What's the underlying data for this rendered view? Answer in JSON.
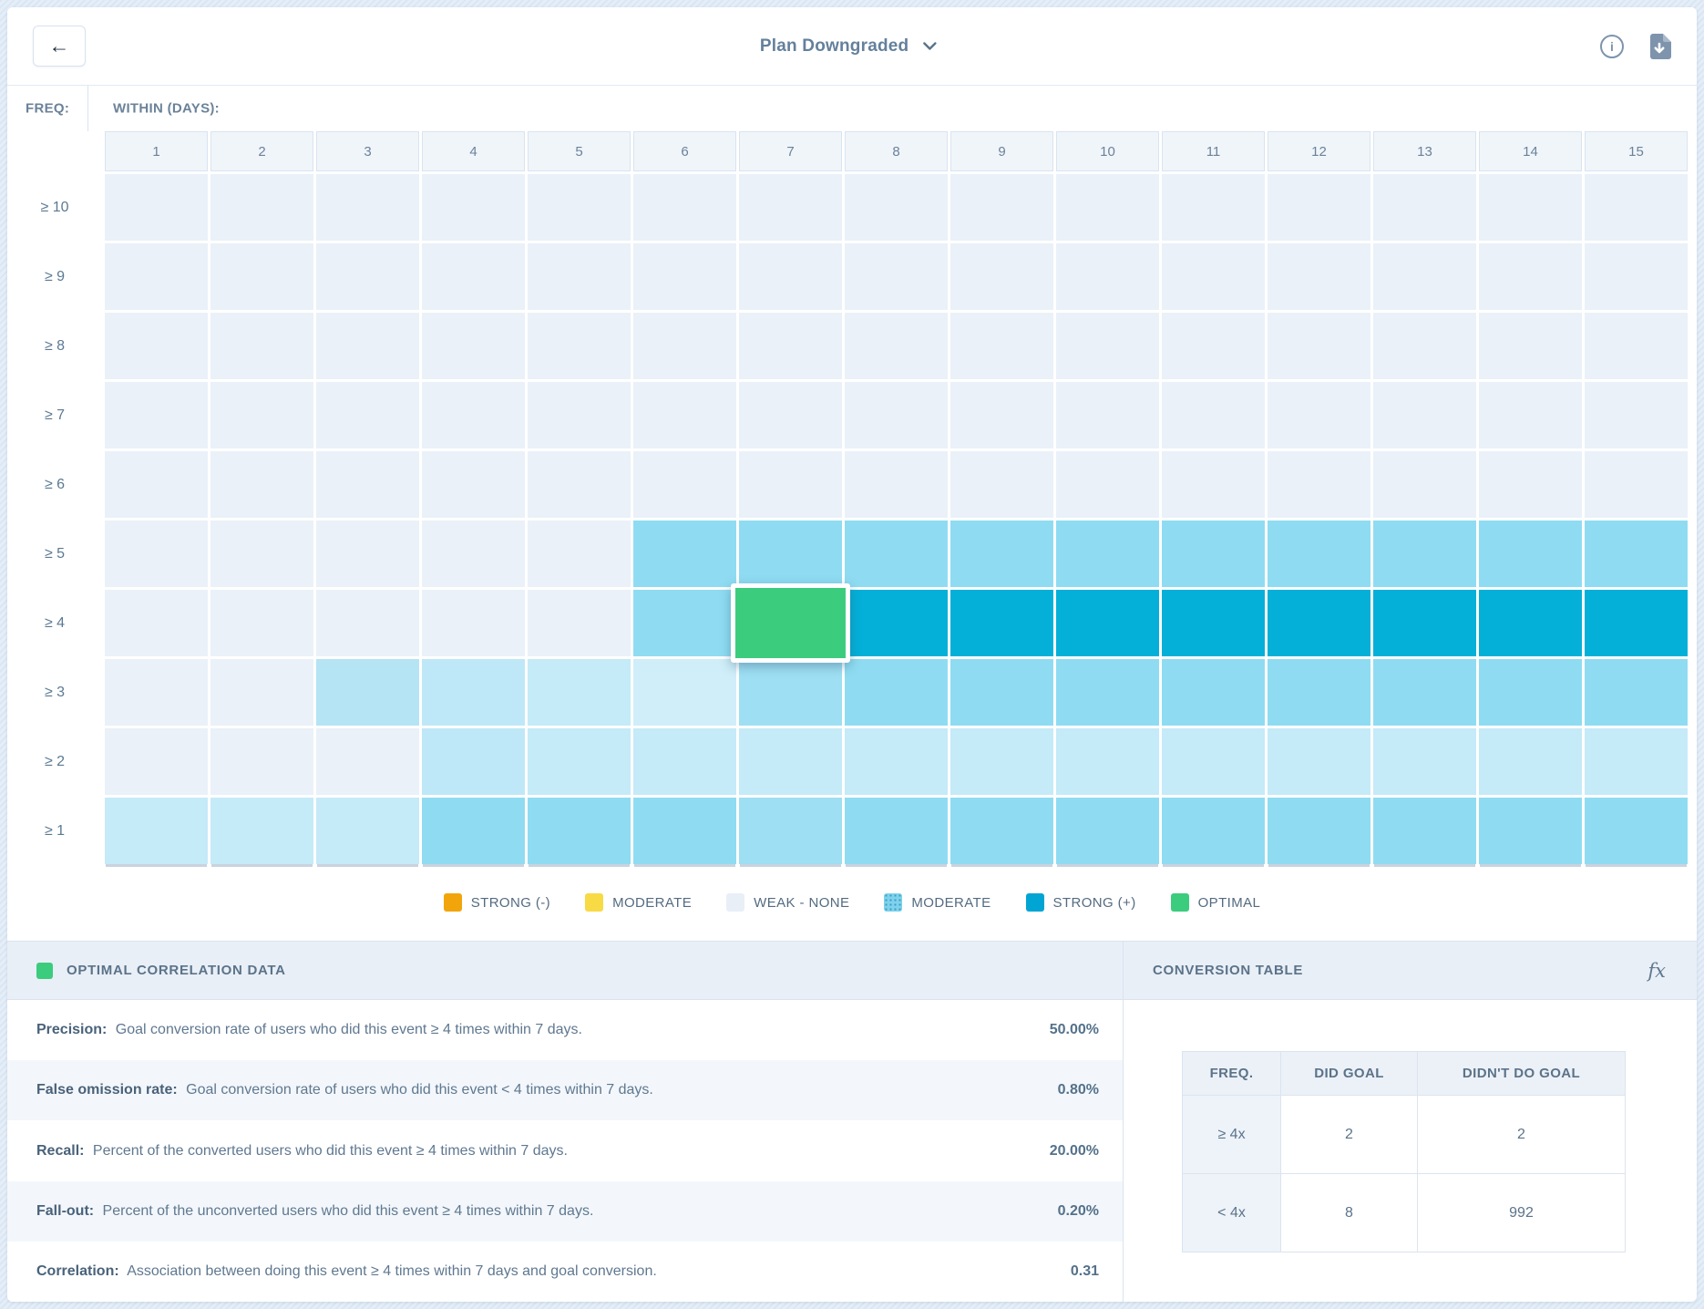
{
  "header": {
    "title": "Plan Downgraded",
    "back_icon": "←",
    "info_glyph": "i"
  },
  "grid": {
    "freq_label": "FREQ:",
    "within_label": "WITHIN (DAYS):",
    "columns": [
      "1",
      "2",
      "3",
      "4",
      "5",
      "6",
      "7",
      "8",
      "9",
      "10",
      "11",
      "12",
      "13",
      "14",
      "15"
    ],
    "rows": [
      {
        "label": "≥ 10",
        "cells": [
          "w",
          "w",
          "w",
          "w",
          "w",
          "w",
          "w",
          "w",
          "w",
          "w",
          "w",
          "w",
          "w",
          "w",
          "w"
        ]
      },
      {
        "label": "≥ 9",
        "cells": [
          "w",
          "w",
          "w",
          "w",
          "w",
          "w",
          "w",
          "w",
          "w",
          "w",
          "w",
          "w",
          "w",
          "w",
          "w"
        ]
      },
      {
        "label": "≥ 8",
        "cells": [
          "w",
          "w",
          "w",
          "w",
          "w",
          "w",
          "w",
          "w",
          "w",
          "w",
          "w",
          "w",
          "w",
          "w",
          "w"
        ]
      },
      {
        "label": "≥ 7",
        "cells": [
          "w",
          "w",
          "w",
          "w",
          "w",
          "w",
          "w",
          "w",
          "w",
          "w",
          "w",
          "w",
          "w",
          "w",
          "w"
        ]
      },
      {
        "label": "≥ 6",
        "cells": [
          "w",
          "w",
          "w",
          "w",
          "w",
          "w",
          "w",
          "w",
          "w",
          "w",
          "w",
          "w",
          "w",
          "w",
          "w"
        ]
      },
      {
        "label": "≥ 5",
        "cells": [
          "w",
          "w",
          "w",
          "w",
          "w",
          "m",
          "m",
          "m",
          "m",
          "m",
          "m",
          "m",
          "m",
          "m",
          "m"
        ]
      },
      {
        "label": "≥ 4",
        "cells": [
          "w",
          "w",
          "w",
          "w",
          "w",
          "m",
          "o",
          "s",
          "s",
          "s",
          "s",
          "s",
          "s",
          "s",
          "s"
        ]
      },
      {
        "label": "≥ 3",
        "cells": [
          "w",
          "w",
          "l3",
          "l2",
          "l1",
          "l0",
          "m2",
          "m",
          "m",
          "m",
          "m",
          "m",
          "m",
          "m",
          "m"
        ]
      },
      {
        "label": "≥ 2",
        "cells": [
          "w",
          "w",
          "w",
          "l2",
          "l1",
          "l1",
          "l1",
          "l1",
          "l1",
          "l1",
          "l1",
          "l1",
          "l1",
          "l1",
          "l1"
        ]
      },
      {
        "label": "≥ 1",
        "cells": [
          "l1",
          "l1",
          "l1",
          "m",
          "m",
          "m",
          "m2",
          "m",
          "m",
          "m",
          "m",
          "m",
          "m",
          "m",
          "m"
        ]
      }
    ],
    "cell_colors": {
      "w": "#eaf1f8",
      "l0": "#cfeef9",
      "l1": "#c5eaf8",
      "l2": "#bee8f7",
      "l3": "#b5e4f5",
      "m": "#8fdcf2",
      "m2": "#9edff3",
      "s": "#04b0d8",
      "o": "#3ccc7e"
    }
  },
  "legend": {
    "items": [
      {
        "label": "STRONG (-)",
        "color": "#f2a50a",
        "style": "solid"
      },
      {
        "label": "MODERATE",
        "color": "#f8da45",
        "style": "solid"
      },
      {
        "label": "WEAK - NONE",
        "color": "#e9eff7",
        "style": "solid"
      },
      {
        "label": "MODERATE",
        "color": "#7fd2ec",
        "style": "hatched"
      },
      {
        "label": "STRONG (+)",
        "color": "#00a5d3",
        "style": "solid"
      },
      {
        "label": "OPTIMAL",
        "color": "#3ccc7e",
        "style": "solid"
      }
    ]
  },
  "optimal_panel": {
    "title": "OPTIMAL CORRELATION DATA",
    "swatch_color": "#3ccc7e",
    "rows": [
      {
        "label": "Precision:",
        "description": "Goal conversion rate of users who did this event ≥ 4 times within 7 days.",
        "value": "50.00%"
      },
      {
        "label": "False omission rate:",
        "description": "Goal conversion rate of users who did this event < 4 times within 7 days.",
        "value": "0.80%"
      },
      {
        "label": "Recall:",
        "description": "Percent of the converted users who did this event ≥ 4 times within 7 days.",
        "value": "20.00%"
      },
      {
        "label": "Fall-out:",
        "description": "Percent of the unconverted users who did this event ≥ 4 times within 7 days.",
        "value": "0.20%"
      },
      {
        "label": "Correlation:",
        "description": "Association between doing this event ≥ 4 times within 7 days and goal conversion.",
        "value": "0.31"
      }
    ]
  },
  "conversion_panel": {
    "title": "CONVERSION TABLE",
    "fx_icon": "fx",
    "headers": [
      "FREQ.",
      "DID GOAL",
      "DIDN'T DO GOAL"
    ],
    "rows": [
      {
        "freq": "≥ 4x",
        "did_goal": "2",
        "didnt_do_goal": "2"
      },
      {
        "freq": "< 4x",
        "did_goal": "8",
        "didnt_do_goal": "992"
      }
    ]
  },
  "chart_data": {
    "type": "heatmap",
    "title": "Plan Downgraded",
    "xlabel": "WITHIN (DAYS):",
    "ylabel": "FREQ:",
    "x": [
      "1",
      "2",
      "3",
      "4",
      "5",
      "6",
      "7",
      "8",
      "9",
      "10",
      "11",
      "12",
      "13",
      "14",
      "15"
    ],
    "y": [
      "≥ 10",
      "≥ 9",
      "≥ 8",
      "≥ 7",
      "≥ 6",
      "≥ 5",
      "≥ 4",
      "≥ 3",
      "≥ 2",
      "≥ 1"
    ],
    "level_meaning": {
      "w": "weak-none",
      "l0": "weak-light",
      "l1": "light",
      "l2": "light",
      "l3": "light",
      "m": "moderate(+)",
      "m2": "moderate(+)",
      "s": "strong(+)",
      "o": "optimal"
    },
    "optimal_point": {
      "freq": "≥ 4",
      "days": "7"
    },
    "legend_position": "bottom-center"
  }
}
